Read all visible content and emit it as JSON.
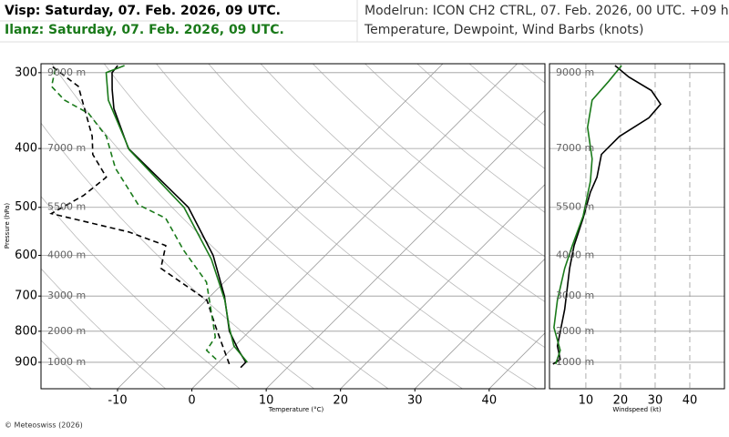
{
  "header": {
    "stations": [
      {
        "text": "Visp: Saturday, 07. Feb. 2026, 09 UTC.",
        "color": "#000000"
      },
      {
        "text": "Ilanz: Saturday, 07. Feb. 2026, 09 UTC.",
        "color": "#1a7a1a"
      }
    ],
    "model_run": "Modelrun: ICON CH2 CTRL, 07. Feb. 2026, 00 UTC. +09 h",
    "subtitle": "Temperature, Dewpoint, Wind Barbs (knots)"
  },
  "footer": "© Meteoswiss (2026)",
  "chart_data": [
    {
      "type": "skewt",
      "ylabel": "Pressure (hPa)",
      "xlabel": "Temperature (°C)",
      "ylog": true,
      "ylim": [
        995,
        290
      ],
      "yticks": [
        300,
        400,
        500,
        600,
        700,
        800,
        900
      ],
      "xlim": [
        -20.3,
        47.5
      ],
      "xticks": [
        -10,
        0,
        10,
        20,
        30,
        40
      ],
      "grid": true,
      "height_labels": [
        {
          "value": 300,
          "label": "9000 m"
        },
        {
          "value": 400,
          "label": "7000 m"
        },
        {
          "value": 500,
          "label": "5500 m"
        },
        {
          "value": 600,
          "label": "4000 m"
        },
        {
          "value": 700,
          "label": "3000 m"
        },
        {
          "value": 800,
          "label": "2000 m"
        },
        {
          "value": 900,
          "label": "1000 m"
        }
      ],
      "series": [
        {
          "color": "#000000",
          "dash": false,
          "pressure": [
            918,
            900,
            860,
            800,
            700,
            600,
            500,
            400,
            344,
            320,
            300,
            292
          ],
          "values": [
            3.7,
            3.7,
            1.1,
            -2.7,
            -8.1,
            -15.1,
            -24.9,
            -40.9,
            -48.2,
            -51.0,
            -53.3,
            -53.5
          ]
        },
        {
          "color": "#000000",
          "dash": true,
          "pressure": [
            906,
            789,
            711,
            630,
            578,
            549,
            512,
            478,
            446,
            409,
            382,
            316,
            292
          ],
          "values": [
            1.7,
            -5.0,
            -9.9,
            -20.4,
            -22.8,
            -29.6,
            -42.5,
            -40.6,
            -40.0,
            -44.9,
            -47.4,
            -56.0,
            -62.5
          ]
        },
        {
          "color": "#1a7a1a",
          "dash": false,
          "pressure": [
            900,
            846,
            789,
            711,
            609,
            500,
            402,
            333,
            300,
            292
          ],
          "values": [
            3.9,
            -0.1,
            -3.2,
            -7.5,
            -14.8,
            -25.5,
            -40.6,
            -50.1,
            -54.1,
            -52.6
          ]
        },
        {
          "color": "#1a7a1a",
          "dash": true,
          "pressure": [
            890,
            860,
            818,
            664,
            588,
            521,
            495,
            431,
            382,
            350,
            333,
            316,
            292
          ],
          "values": [
            -0.7,
            -3.2,
            -3.8,
            -12.4,
            -19.8,
            -26.5,
            -32.0,
            -40.0,
            -45.5,
            -51.0,
            -56.0,
            -59.6,
            -61.8
          ]
        }
      ]
    },
    {
      "type": "line",
      "xlabel": "Windspeed (kt)",
      "ylog": true,
      "ylim": [
        995,
        290
      ],
      "xlim": [
        -0.5,
        50
      ],
      "xticks": [
        10,
        20,
        30,
        40
      ],
      "grid": true,
      "yticks": [
        {
          "value": 300,
          "label": "9000 m"
        },
        {
          "value": 400,
          "label": "7000 m"
        },
        {
          "value": 500,
          "label": "5500 m"
        },
        {
          "value": 600,
          "label": "4000 m"
        },
        {
          "value": 700,
          "label": "3000 m"
        },
        {
          "value": 800,
          "label": "2000 m"
        },
        {
          "value": 900,
          "label": "1000 m"
        }
      ],
      "series": [
        {
          "color": "#000000",
          "pressure": [
            906,
            890,
            846,
            736,
            630,
            578,
            521,
            472,
            446,
            409,
            382,
            356,
            338,
            321,
            305,
            292
          ],
          "values": [
            0.5,
            2.6,
            1.8,
            3.9,
            5.3,
            6.6,
            9.2,
            11.3,
            13.2,
            14.5,
            19.7,
            28.2,
            31.6,
            28.9,
            22.4,
            18.4
          ]
        },
        {
          "color": "#1a7a1a",
          "pressure": [
            906,
            860,
            789,
            711,
            630,
            578,
            517,
            453,
            416,
            369,
            333,
            310,
            292
          ],
          "values": [
            1.3,
            2.6,
            0.8,
            1.8,
            3.9,
            6.1,
            9.2,
            11.3,
            11.8,
            10.5,
            11.8,
            16.6,
            20.3
          ]
        }
      ]
    }
  ]
}
